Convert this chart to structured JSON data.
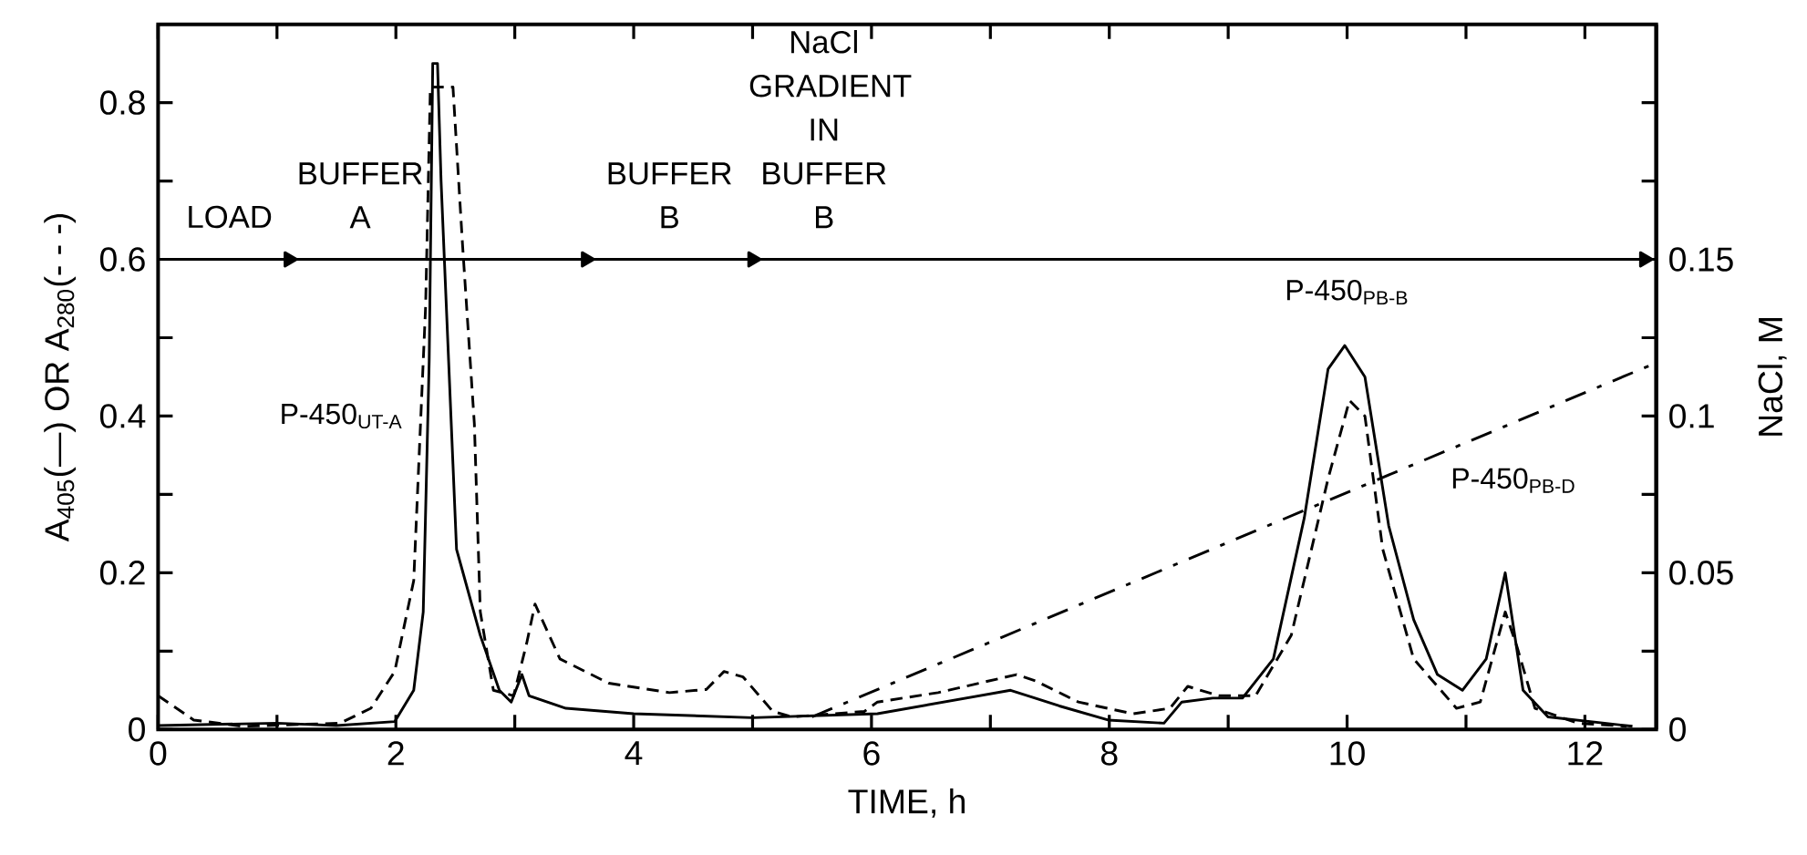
{
  "chart_data": {
    "type": "line",
    "xlabel": "TIME, h",
    "ylabel": "A$_{405}$(—) OR A$_{280}$(- - -)",
    "y2label": "NaCl, M",
    "xlim": [
      0,
      12.6
    ],
    "xticks": [
      0,
      {
        "value": 1,
        "label": null
      },
      2,
      {
        "value": 3,
        "label": null
      },
      4,
      {
        "value": 5,
        "label": null
      },
      6,
      {
        "value": 7,
        "label": null
      },
      8,
      {
        "value": 9,
        "label": null
      },
      10,
      {
        "value": 11,
        "label": null
      },
      12
    ],
    "ylim": [
      0,
      0.9
    ],
    "yticks": [
      0,
      {
        "value": 0.1,
        "label": null
      },
      0.2,
      {
        "value": 0.3,
        "label": null
      },
      0.4,
      {
        "value": 0.5,
        "label": null
      },
      0.6,
      {
        "value": 0.7,
        "label": null
      },
      0.8
    ],
    "y2lim": [
      0,
      0.225
    ],
    "y2ticks": [
      0,
      {
        "value": 0.025,
        "label": null
      },
      0.05,
      {
        "value": 0.075,
        "label": null
      },
      0.1,
      {
        "value": 0.125,
        "label": null
      },
      0.15,
      {
        "value": 0.175,
        "label": null
      },
      {
        "value": 0.2,
        "label": null
      }
    ],
    "grid": false,
    "marker": "none",
    "series": [
      {
        "color": "#000000",
        "line_style": "solid",
        "x": [
          0,
          1,
          1.5,
          1.99,
          2.15,
          2.23,
          2.28,
          2.31,
          2.35,
          2.38,
          2.51,
          2.71,
          2.87,
          2.97,
          3.06,
          3.12,
          3.43,
          4,
          5,
          6.05,
          7.17,
          7.58,
          7.99,
          8.46,
          8.61,
          8.87,
          9.12,
          9.38,
          9.64,
          9.84,
          9.98,
          10.15,
          10.35,
          10.56,
          10.76,
          10.97,
          11.17,
          11.33,
          11.48,
          11.69,
          12.4
        ],
        "values": [
          0.005,
          0.008,
          0.005,
          0.01,
          0.05,
          0.15,
          0.47,
          0.85,
          0.85,
          0.7,
          0.23,
          0.12,
          0.05,
          0.035,
          0.07,
          0.043,
          0.027,
          0.02,
          0.015,
          0.02,
          0.05,
          0.03,
          0.012,
          0.008,
          0.035,
          0.04,
          0.04,
          0.09,
          0.27,
          0.46,
          0.49,
          0.45,
          0.26,
          0.14,
          0.07,
          0.05,
          0.09,
          0.2,
          0.05,
          0.016,
          0.004
        ]
      },
      {
        "color": "#000000",
        "line_style": "dashed",
        "x": [
          0,
          0.3,
          0.71,
          1.53,
          1.79,
          1.99,
          2.15,
          2.25,
          2.29,
          2.48,
          2.56,
          2.66,
          2.71,
          2.82,
          2.99,
          3.1,
          3.17,
          3.38,
          3.79,
          4.3,
          4.61,
          4.76,
          4.92,
          5.17,
          5.33,
          5.94,
          6.05,
          6.56,
          7.22,
          7.38,
          7.74,
          8.2,
          8.51,
          8.66,
          8.92,
          9.23,
          9.53,
          9.84,
          10.02,
          10.15,
          10.3,
          10.56,
          10.92,
          11.12,
          11.33,
          11.43,
          11.58,
          11.94,
          12.35
        ],
        "values": [
          0.043,
          0.012,
          0.004,
          0.008,
          0.027,
          0.074,
          0.19,
          0.54,
          0.82,
          0.82,
          0.62,
          0.39,
          0.15,
          0.05,
          0.043,
          0.11,
          0.16,
          0.09,
          0.059,
          0.047,
          0.051,
          0.074,
          0.067,
          0.023,
          0.016,
          0.023,
          0.035,
          0.047,
          0.07,
          0.062,
          0.035,
          0.02,
          0.027,
          0.055,
          0.043,
          0.043,
          0.12,
          0.32,
          0.42,
          0.4,
          0.23,
          0.09,
          0.027,
          0.035,
          0.15,
          0.105,
          0.027,
          0.008,
          0.004
        ]
      },
      {
        "color": "#000000",
        "line_style": "dashdot",
        "axis": "y2",
        "x": [
          5.5,
          12.6
        ],
        "values": [
          0.004,
          0.117
        ]
      },
      {
        "color": "#000000",
        "line_style": "solid",
        "marker": "triangle",
        "x": [
          0,
          1.1,
          3.6,
          5.0,
          12.5
        ],
        "values": [
          0.6,
          0.6,
          0.6,
          0.6,
          0.6
        ]
      }
    ],
    "annotations": [
      {
        "text": "P-450$_{UT-A}$",
        "x": 2.2,
        "y": 0.4
      },
      {
        "text": "P-450$_{PB-B}$",
        "x": 10.0,
        "y": 0.49
      },
      {
        "text": "P-450$_{PB-D}$",
        "x": 11.4,
        "y": 0.2
      },
      {
        "text": "LOAD",
        "x": 0.6,
        "y": 0.6
      },
      {
        "text": "BUFFER A",
        "x": 1.7,
        "y": 0.6
      },
      {
        "text": "BUFFER B",
        "x": 4.3,
        "y": 0.6
      },
      {
        "text": "NaCl GRADIENT IN BUFFER B",
        "x": 5.6,
        "y": 0.6
      }
    ]
  }
}
